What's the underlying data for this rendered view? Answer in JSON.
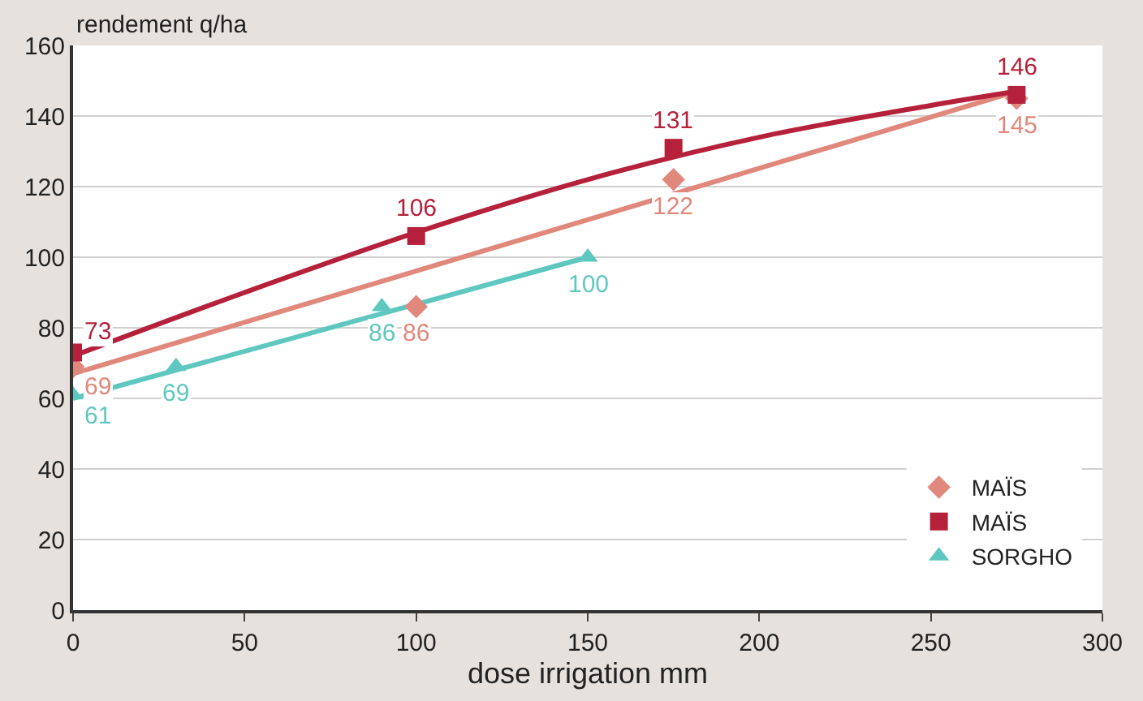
{
  "chart_data": {
    "type": "scatter",
    "xlabel": "dose irrigation mm",
    "ylabel": "rendement q/ha",
    "xlim": [
      0,
      300
    ],
    "xticks": [
      0,
      50,
      100,
      150,
      200,
      250,
      300
    ],
    "ylim": [
      0,
      160
    ],
    "yticks": [
      0,
      20,
      40,
      60,
      80,
      100,
      120,
      140,
      160
    ],
    "grid": "y",
    "legend": "bottom right",
    "series": [
      {
        "type": "line",
        "color": "#e0887c",
        "x": [
          0,
          275
        ],
        "values": [
          67,
          147
        ],
        "marker": "none"
      },
      {
        "type": "line",
        "color": "#b5203a",
        "x": [
          0,
          50,
          100,
          150,
          200,
          250,
          275
        ],
        "values": [
          72,
          90,
          107,
          122,
          134,
          143,
          147
        ],
        "marker": "none"
      },
      {
        "type": "line",
        "color": "#5ec8c0",
        "x": [
          0,
          150
        ],
        "values": [
          60,
          100
        ],
        "marker": "none"
      },
      {
        "name": "MAÏS",
        "color": "#e0887c",
        "marker": "diamond",
        "x": [
          0,
          100,
          175,
          275
        ],
        "values": [
          69,
          86,
          122,
          145
        ],
        "data_labels": true
      },
      {
        "name": "MAÏS",
        "color": "#b5203a",
        "marker": "square",
        "x": [
          0,
          100,
          175,
          275
        ],
        "values": [
          73,
          106,
          131,
          146
        ],
        "data_labels": true
      },
      {
        "name": "SORGHO",
        "color": "#5ec8c0",
        "marker": "triangle",
        "x": [
          0,
          30,
          90,
          150
        ],
        "values": [
          61,
          69,
          86,
          100
        ],
        "data_labels": true
      }
    ]
  }
}
